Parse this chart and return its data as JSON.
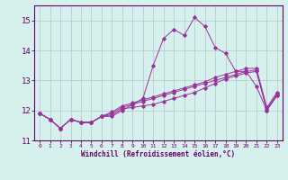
{
  "xlabel": "Windchill (Refroidissement éolien,°C)",
  "x": [
    0,
    1,
    2,
    3,
    4,
    5,
    6,
    7,
    8,
    9,
    10,
    11,
    12,
    13,
    14,
    15,
    16,
    17,
    18,
    19,
    20,
    21,
    22,
    23
  ],
  "line1": [
    11.9,
    11.7,
    11.4,
    11.7,
    11.6,
    11.6,
    11.8,
    11.8,
    12.0,
    12.2,
    12.4,
    13.5,
    14.4,
    14.7,
    14.5,
    15.1,
    14.8,
    14.1,
    13.9,
    13.3,
    13.3,
    12.8,
    12.0,
    12.5
  ],
  "line2": [
    11.9,
    11.7,
    11.4,
    11.7,
    11.6,
    11.6,
    11.8,
    11.85,
    12.05,
    12.1,
    12.15,
    12.2,
    12.3,
    12.4,
    12.5,
    12.6,
    12.75,
    12.9,
    13.05,
    13.15,
    13.25,
    13.3,
    12.0,
    12.5
  ],
  "line3": [
    11.9,
    11.7,
    11.4,
    11.7,
    11.6,
    11.6,
    11.8,
    11.9,
    12.1,
    12.2,
    12.3,
    12.4,
    12.5,
    12.6,
    12.7,
    12.8,
    12.9,
    13.0,
    13.1,
    13.2,
    13.3,
    13.35,
    12.05,
    12.55
  ],
  "line4": [
    11.9,
    11.7,
    11.4,
    11.7,
    11.6,
    11.6,
    11.8,
    11.95,
    12.15,
    12.25,
    12.35,
    12.45,
    12.55,
    12.65,
    12.75,
    12.85,
    12.95,
    13.1,
    13.2,
    13.3,
    13.4,
    13.4,
    12.1,
    12.6
  ],
  "line_color": "#993399",
  "bg_color": "#d6f0ee",
  "grid_color": "#b0c8c8",
  "ylim": [
    11.0,
    15.5
  ],
  "yticks": [
    11,
    12,
    13,
    14,
    15
  ],
  "xticks": [
    0,
    1,
    2,
    3,
    4,
    5,
    6,
    7,
    8,
    9,
    10,
    11,
    12,
    13,
    14,
    15,
    16,
    17,
    18,
    19,
    20,
    21,
    22,
    23
  ]
}
